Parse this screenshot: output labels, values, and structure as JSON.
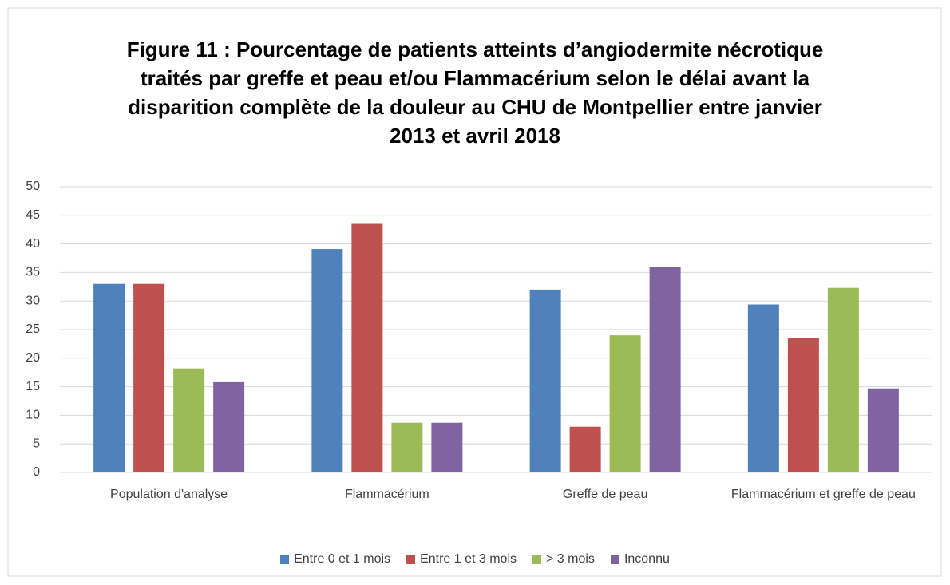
{
  "chart_data": {
    "type": "bar",
    "title": "Figure 11 : Pourcentage de patients atteints  d’angiodermite nécrotique traités par  greffe et peau et/ou Flammacérium selon le délai avant la disparition complète de la douleur  au CHU de Montpellier entre janvier 2013 et avril 2018",
    "categories": [
      "Population d'analyse",
      "Flammacérium",
      "Greffe de peau",
      "Flammacérium et greffe de peau"
    ],
    "series": [
      {
        "name": "Entre 0 et 1 mois",
        "color": "#4f81bd",
        "values": [
          33,
          39.1,
          32,
          29.4
        ]
      },
      {
        "name": "Entre 1 et 3 mois",
        "color": "#c0504d",
        "values": [
          33,
          43.5,
          8,
          23.5
        ]
      },
      {
        "name": "> 3 mois",
        "color": "#9bbb59",
        "values": [
          18.2,
          8.7,
          24,
          32.3
        ]
      },
      {
        "name": "Inconnu",
        "color": "#8064a2",
        "values": [
          15.8,
          8.7,
          36,
          14.7
        ]
      }
    ],
    "ylim": [
      0,
      50
    ],
    "yticks": [
      0,
      5,
      10,
      15,
      20,
      25,
      30,
      35,
      40,
      45,
      50
    ],
    "grid": true,
    "legend": "bottom"
  }
}
